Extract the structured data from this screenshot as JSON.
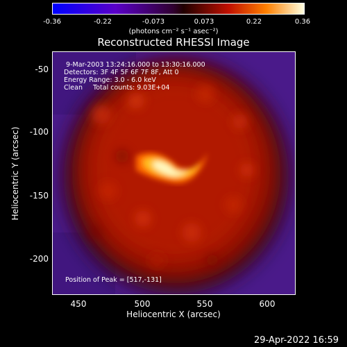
{
  "colorbar": {
    "ticks": [
      "-0.36",
      "-0.22",
      "-0.073",
      "0.073",
      "0.22",
      "0.36"
    ],
    "units": "(photons cm⁻² s⁻¹ asec⁻²)"
  },
  "title": "Reconstructed RHESSI Image",
  "info": {
    "time": " 9-Mar-2003 13:24:16.000 to 13:30:16.000",
    "detectors": "Detectors: 3F 4F 5F 6F 7F 8F, Att 0",
    "energy": "Energy Range: 3.0 - 6.0 keV",
    "clean": "Clean     Total counts: 9.03E+04",
    "peak": "Position of Peak = [517,-131]"
  },
  "axes": {
    "xlabel": "Heliocentric X (arcsec)",
    "ylabel": "Heliocentric Y (arcsec)",
    "xticks": [
      "450",
      "500",
      "550",
      "600"
    ],
    "yticks": [
      "-50",
      "-100",
      "-150",
      "-200"
    ]
  },
  "timestamp": "29-Apr-2022 16:59"
}
